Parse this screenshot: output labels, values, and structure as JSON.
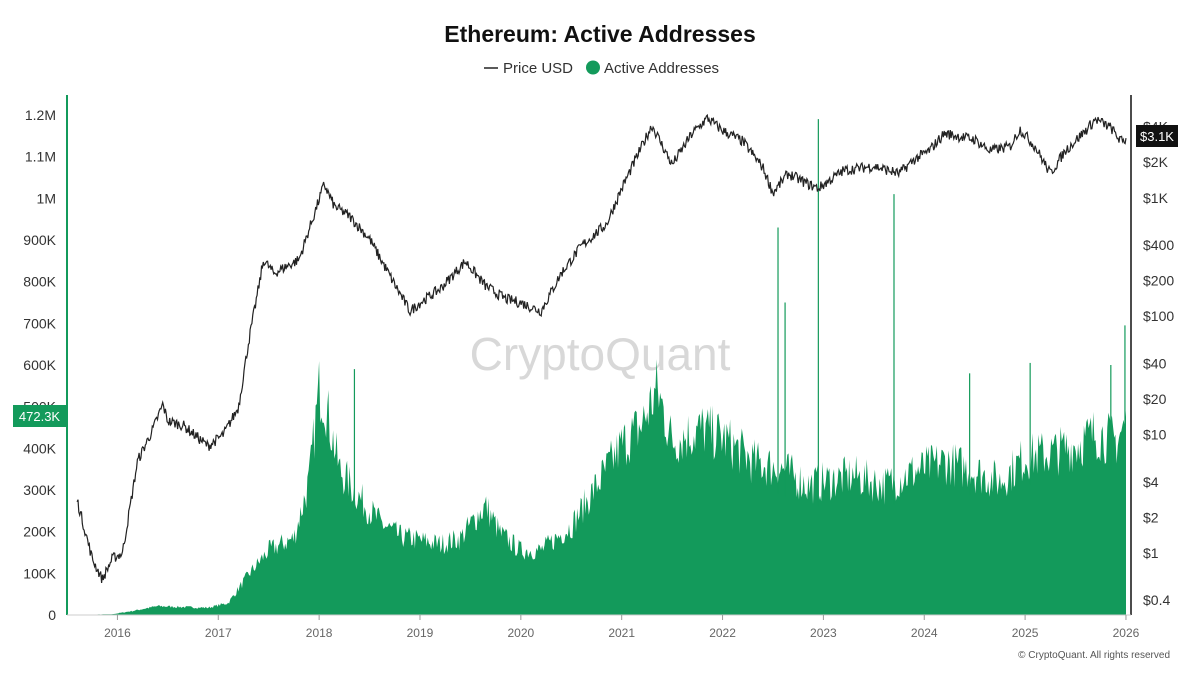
{
  "chart_data": {
    "type": "area",
    "title": "Ethereum: Active Addresses",
    "legend": {
      "placement": "top-center",
      "items": [
        {
          "label": "Price USD",
          "marker": "line",
          "color": "#222222"
        },
        {
          "label": "Active Addresses",
          "marker": "dot",
          "color": "#139A5B"
        }
      ]
    },
    "x_axis": {
      "ticks": [
        "2016",
        "2017",
        "2018",
        "2019",
        "2020",
        "2021",
        "2022",
        "2023",
        "2024",
        "2025",
        "2026"
      ],
      "range": [
        "2015-07",
        "2026-01"
      ]
    },
    "left_axis": {
      "ticks": [
        "0",
        "100K",
        "200K",
        "300K",
        "400K",
        "500K",
        "600K",
        "700K",
        "800K",
        "900K",
        "1M",
        "1.1M",
        "1.2M"
      ],
      "range": [
        0,
        1200000
      ]
    },
    "right_axis": {
      "scale": "log",
      "ticks": [
        "$0.4",
        "$1",
        "$2",
        "$4",
        "$10",
        "$20",
        "$40",
        "$100",
        "$200",
        "$400",
        "$1K",
        "$2K",
        "$4K"
      ],
      "range": [
        0.3,
        5000
      ]
    },
    "current_values": {
      "active_addresses": "472.3K",
      "price": "$3.1K"
    },
    "series": [
      {
        "name": "Active Addresses",
        "kind": "area",
        "color": "#139A5B",
        "points": [
          [
            "2015.58",
            0
          ],
          [
            "2015.95",
            2000
          ],
          [
            "2016.15",
            10000
          ],
          [
            "2016.4",
            22000
          ],
          [
            "2016.6",
            20000
          ],
          [
            "2016.9",
            18000
          ],
          [
            "2017.1",
            30000
          ],
          [
            "2017.3",
            100000
          ],
          [
            "2017.5",
            160000
          ],
          [
            "2017.75",
            190000
          ],
          [
            "2017.9",
            330000
          ],
          [
            "2018.0",
            560000
          ],
          [
            "2018.05",
            540000
          ],
          [
            "2018.2",
            360000
          ],
          [
            "2018.4",
            290000
          ],
          [
            "2018.6",
            230000
          ],
          [
            "2018.8",
            195000
          ],
          [
            "2019.0",
            185000
          ],
          [
            "2019.2",
            175000
          ],
          [
            "2019.4",
            190000
          ],
          [
            "2019.55",
            240000
          ],
          [
            "2019.65",
            270000
          ],
          [
            "2019.8",
            200000
          ],
          [
            "2020.0",
            160000
          ],
          [
            "2020.2",
            160000
          ],
          [
            "2020.5",
            220000
          ],
          [
            "2020.75",
            320000
          ],
          [
            "2021.0",
            420000
          ],
          [
            "2021.2",
            470000
          ],
          [
            "2021.35",
            560000
          ],
          [
            "2021.5",
            430000
          ],
          [
            "2021.8",
            460000
          ],
          [
            "2022.0",
            440000
          ],
          [
            "2022.3",
            380000
          ],
          [
            "2022.6",
            360000
          ],
          [
            "2022.85",
            320000
          ],
          [
            "2023.0",
            330000
          ],
          [
            "2023.3",
            345000
          ],
          [
            "2023.6",
            320000
          ],
          [
            "2023.85",
            350000
          ],
          [
            "2024.2",
            380000
          ],
          [
            "2024.45",
            360000
          ],
          [
            "2024.75",
            330000
          ],
          [
            "2025.0",
            390000
          ],
          [
            "2025.25",
            400000
          ],
          [
            "2025.5",
            420000
          ],
          [
            "2025.7",
            450000
          ],
          [
            "2025.9",
            430000
          ],
          [
            "2026.0",
            472300
          ]
        ],
        "spikes": [
          [
            "2018.35",
            590000
          ],
          [
            "2022.55",
            930000
          ],
          [
            "2022.62",
            750000
          ],
          [
            "2022.95",
            1190000
          ],
          [
            "2023.7",
            1010000
          ],
          [
            "2024.45",
            580000
          ],
          [
            "2025.05",
            605000
          ],
          [
            "2025.85",
            600000
          ],
          [
            "2025.99",
            695000
          ]
        ]
      },
      {
        "name": "Price USD",
        "kind": "line",
        "color": "#222222",
        "points": [
          [
            "2015.6",
            2.8
          ],
          [
            "2015.75",
            0.9
          ],
          [
            "2015.85",
            0.6
          ],
          [
            "2015.95",
            0.9
          ],
          [
            "2016.05",
            1.0
          ],
          [
            "2016.2",
            6
          ],
          [
            "2016.35",
            11
          ],
          [
            "2016.45",
            18
          ],
          [
            "2016.5",
            13
          ],
          [
            "2016.65",
            12
          ],
          [
            "2016.9",
            8
          ],
          [
            "2017.05",
            10
          ],
          [
            "2017.2",
            17
          ],
          [
            "2017.3",
            60
          ],
          [
            "2017.45",
            300
          ],
          [
            "2017.55",
            230
          ],
          [
            "2017.8",
            300
          ],
          [
            "2017.95",
            720
          ],
          [
            "2018.05",
            1300
          ],
          [
            "2018.15",
            850
          ],
          [
            "2018.3",
            700
          ],
          [
            "2018.5",
            450
          ],
          [
            "2018.7",
            220
          ],
          [
            "2018.9",
            110
          ],
          [
            "2019.0",
            130
          ],
          [
            "2019.2",
            170
          ],
          [
            "2019.45",
            290
          ],
          [
            "2019.65",
            180
          ],
          [
            "2019.85",
            140
          ],
          [
            "2020.0",
            130
          ],
          [
            "2020.2",
            110
          ],
          [
            "2020.4",
            230
          ],
          [
            "2020.6",
            390
          ],
          [
            "2020.85",
            600
          ],
          [
            "2021.0",
            1200
          ],
          [
            "2021.1",
            1800
          ],
          [
            "2021.3",
            4100
          ],
          [
            "2021.5",
            1900
          ],
          [
            "2021.7",
            3500
          ],
          [
            "2021.85",
            4700
          ],
          [
            "2022.0",
            3700
          ],
          [
            "2022.2",
            3000
          ],
          [
            "2022.4",
            1800
          ],
          [
            "2022.5",
            1100
          ],
          [
            "2022.65",
            1600
          ],
          [
            "2022.85",
            1300
          ],
          [
            "2022.95",
            1200
          ],
          [
            "2023.2",
            1700
          ],
          [
            "2023.5",
            1850
          ],
          [
            "2023.75",
            1600
          ],
          [
            "2023.9",
            2100
          ],
          [
            "2024.05",
            2500
          ],
          [
            "2024.2",
            3500
          ],
          [
            "2024.5",
            3100
          ],
          [
            "2024.65",
            2500
          ],
          [
            "2024.85",
            2700
          ],
          [
            "2024.95",
            3800
          ],
          [
            "2025.1",
            2700
          ],
          [
            "2025.25",
            1600
          ],
          [
            "2025.4",
            2500
          ],
          [
            "2025.6",
            3700
          ],
          [
            "2025.7",
            4600
          ],
          [
            "2025.85",
            3900
          ],
          [
            "2025.95",
            3000
          ],
          [
            "2026.0",
            3100
          ]
        ]
      }
    ],
    "watermark": "CryptoQuant",
    "copyright": "© CryptoQuant. All rights reserved",
    "colors": {
      "area": "#139A5B",
      "price": "#222222",
      "badge_price": "#111111",
      "badge_addresses": "#139A5B"
    }
  }
}
